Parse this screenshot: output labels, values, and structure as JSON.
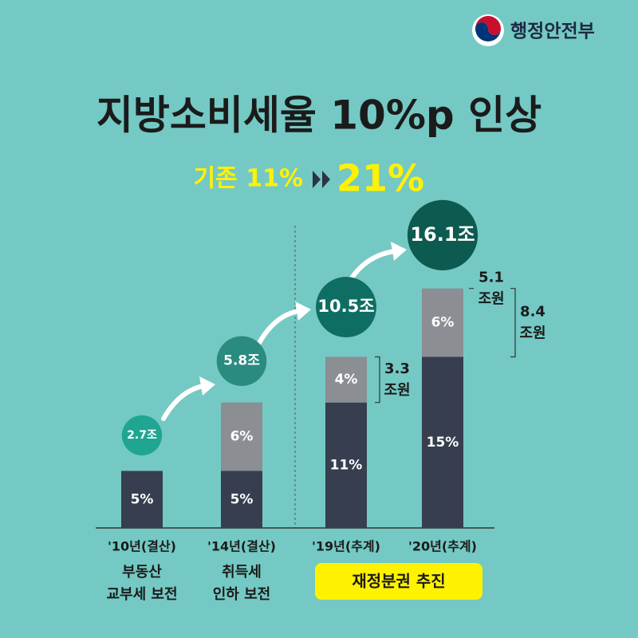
{
  "header": {
    "logo_text": "행정안전부"
  },
  "chart_data": {
    "type": "bar",
    "title": "지방소비세율 10%p 인상",
    "subtitle": {
      "before": "기존 11%",
      "after": "21%"
    },
    "categories": [
      "'10년(결산)",
      "'14년(결산)",
      "'19년(추계)",
      "'20년(추계)"
    ],
    "series": [
      {
        "color": "#363e4f",
        "values": [
          5,
          5,
          11,
          15
        ],
        "value_labels": [
          "5%",
          "5%",
          "11%",
          "15%"
        ]
      },
      {
        "color": "#8b8e93",
        "values": [
          null,
          6,
          4,
          6
        ],
        "value_labels": [
          null,
          "6%",
          "4%",
          "6%"
        ]
      }
    ],
    "amounts": {
      "values": [
        2.7,
        5.8,
        10.5,
        16.1
      ],
      "value_labels": [
        "2.7조",
        "5.8조",
        "10.5조",
        "16.1조"
      ],
      "colors": [
        "#1fa592",
        "#2a8b80",
        "#0f6e63",
        "#0c5a50"
      ]
    },
    "annotations": [
      {
        "lines": [
          "3.3",
          "조원"
        ]
      },
      {
        "lines": [
          "5.1",
          "조원"
        ]
      },
      {
        "lines": [
          "8.4",
          "조원"
        ]
      }
    ],
    "captions": [
      [
        "부동산",
        "교부세 보전"
      ],
      [
        "취득세",
        "인하 보전"
      ]
    ],
    "highlight": "재정분권 추진"
  }
}
